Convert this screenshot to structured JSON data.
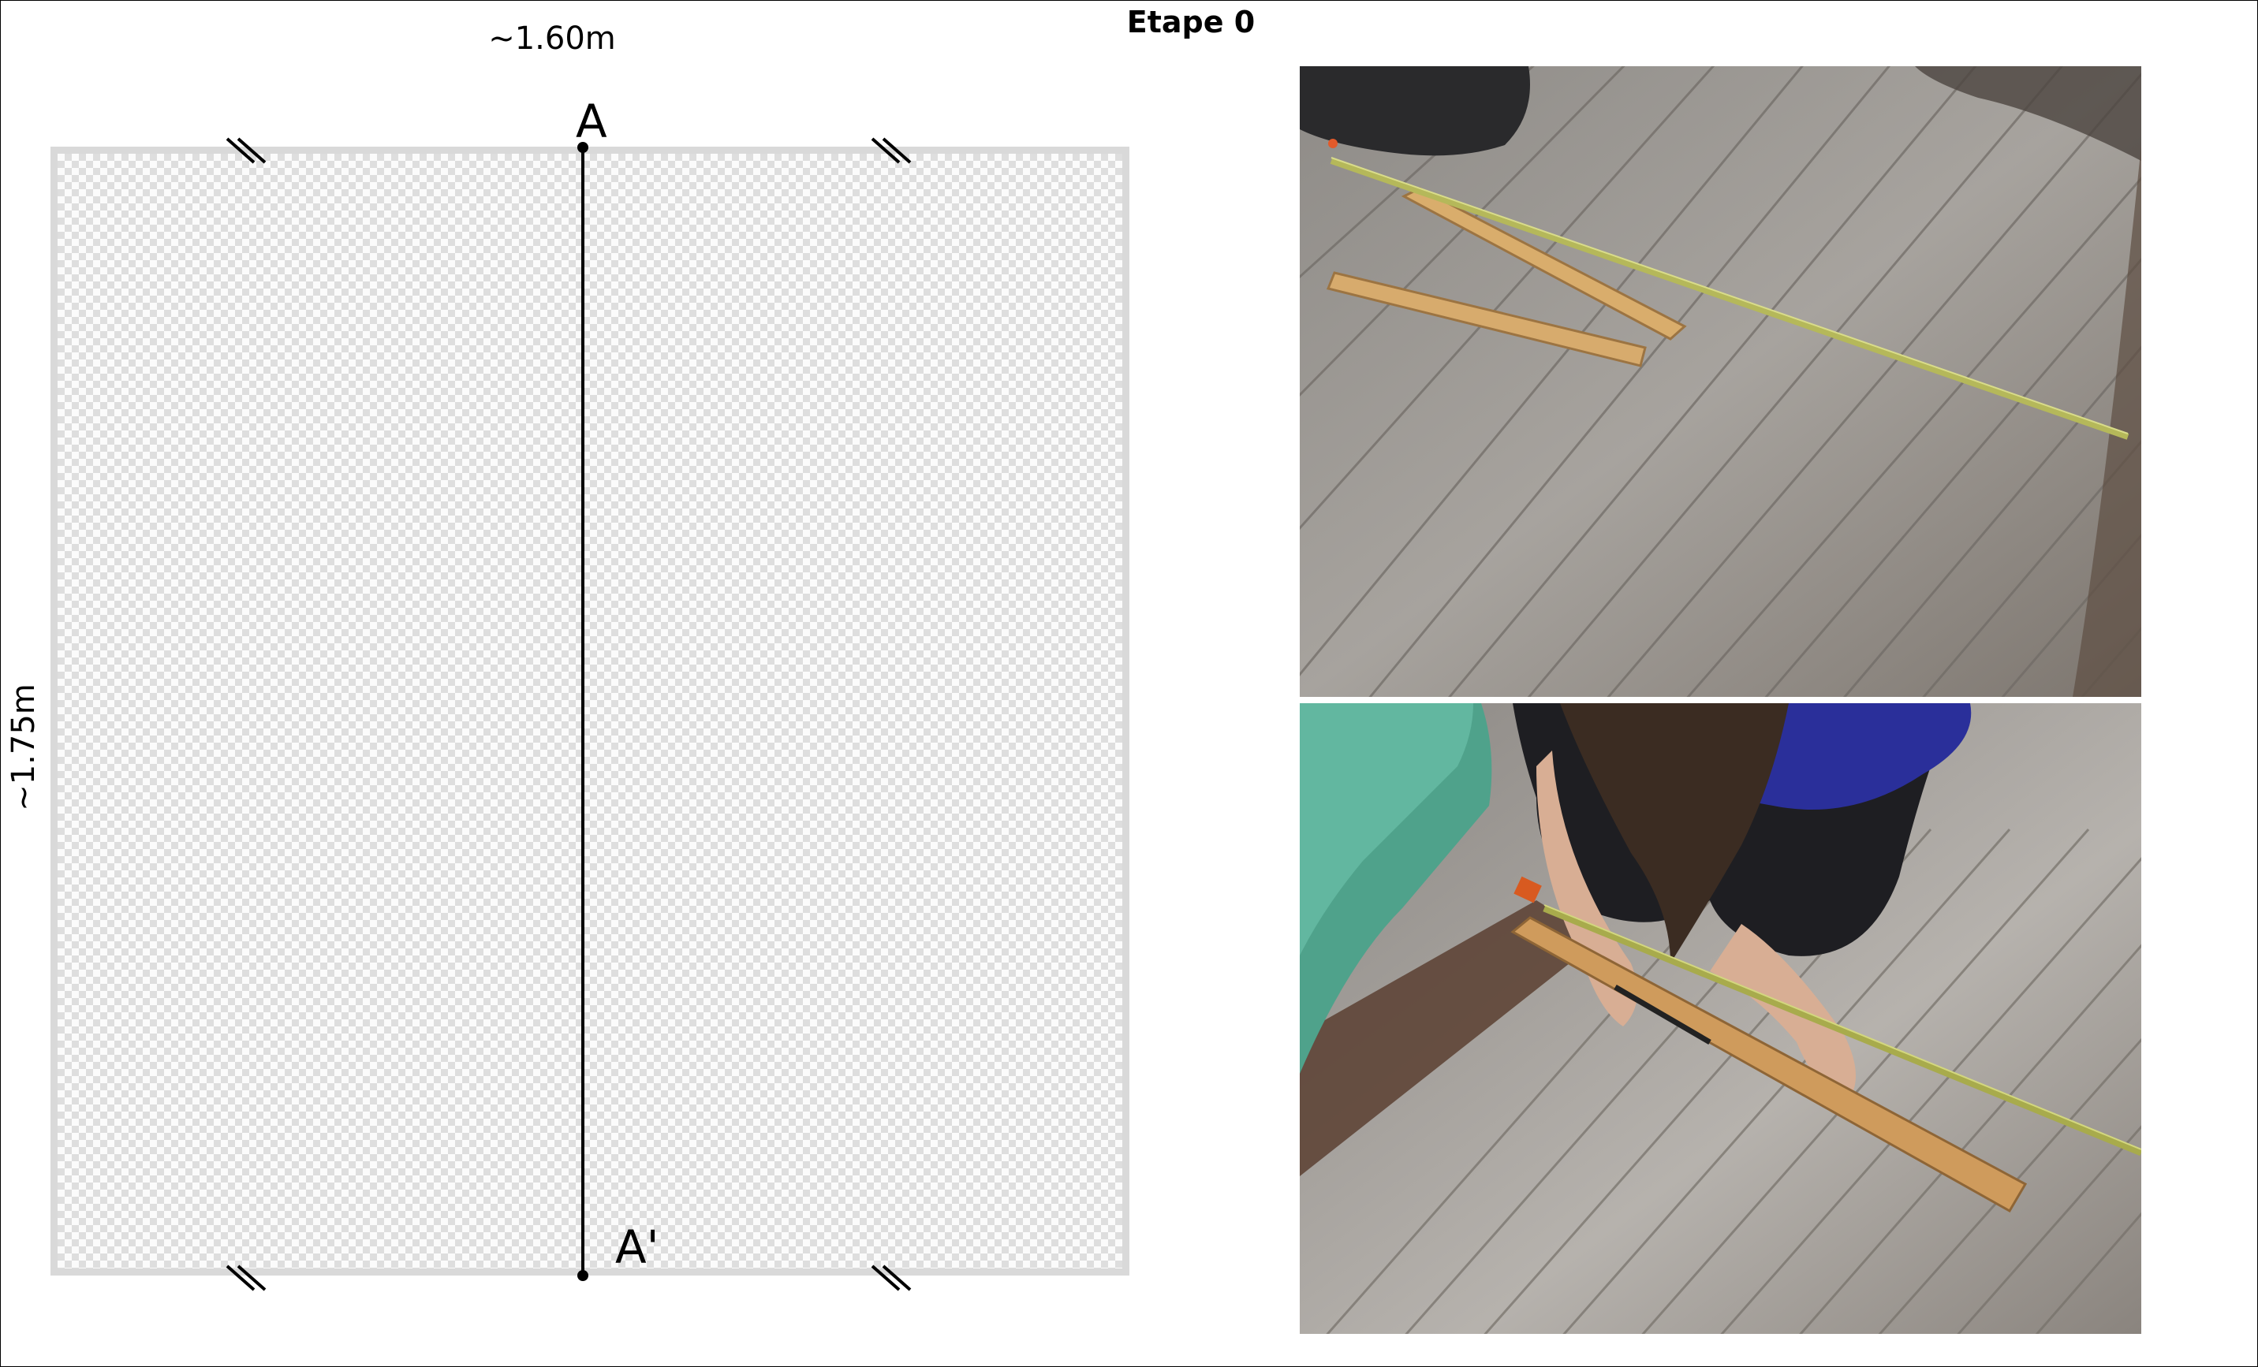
{
  "title": "Etape 0",
  "diagram": {
    "width_label": "~1.60m",
    "height_label": "~1.75m",
    "point_top": "A",
    "point_bottom": "A'"
  },
  "colors": {
    "frame": "#d9d9d9",
    "checker": "#dedede",
    "line": "#000000"
  },
  "photos": [
    {
      "icon": "floor-boards-measuring-tape-photo"
    },
    {
      "icon": "person-marking-plank-photo"
    }
  ]
}
